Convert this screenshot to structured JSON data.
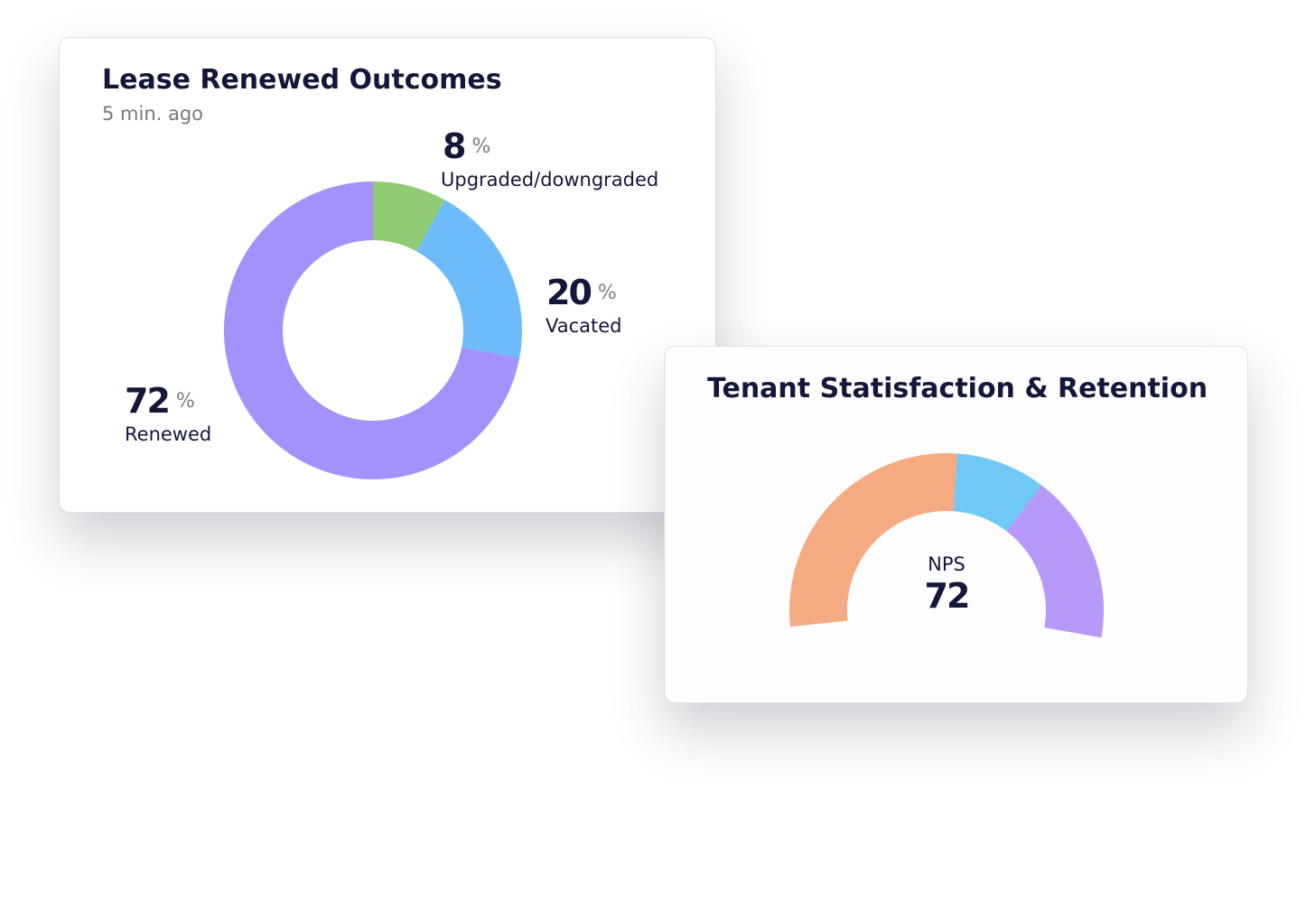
{
  "chart_data": [
    {
      "type": "donut",
      "title": "Lease Renewed Outcomes",
      "subtitle": "5 min. ago",
      "categories": [
        "Upgraded/downgraded",
        "Vacated",
        "Renewed"
      ],
      "values": [
        8,
        20,
        72
      ],
      "unit": "%",
      "colors": [
        "#8fcc73",
        "#6dbbfa",
        "#a491fb"
      ]
    },
    {
      "type": "gauge",
      "title": "Tenant Statisfaction & Retention",
      "label": "NPS",
      "value": 72,
      "values": [
        51,
        17,
        32
      ],
      "colors": [
        "#f5ab82",
        "#70c8f5",
        "#b898f8"
      ]
    }
  ]
}
